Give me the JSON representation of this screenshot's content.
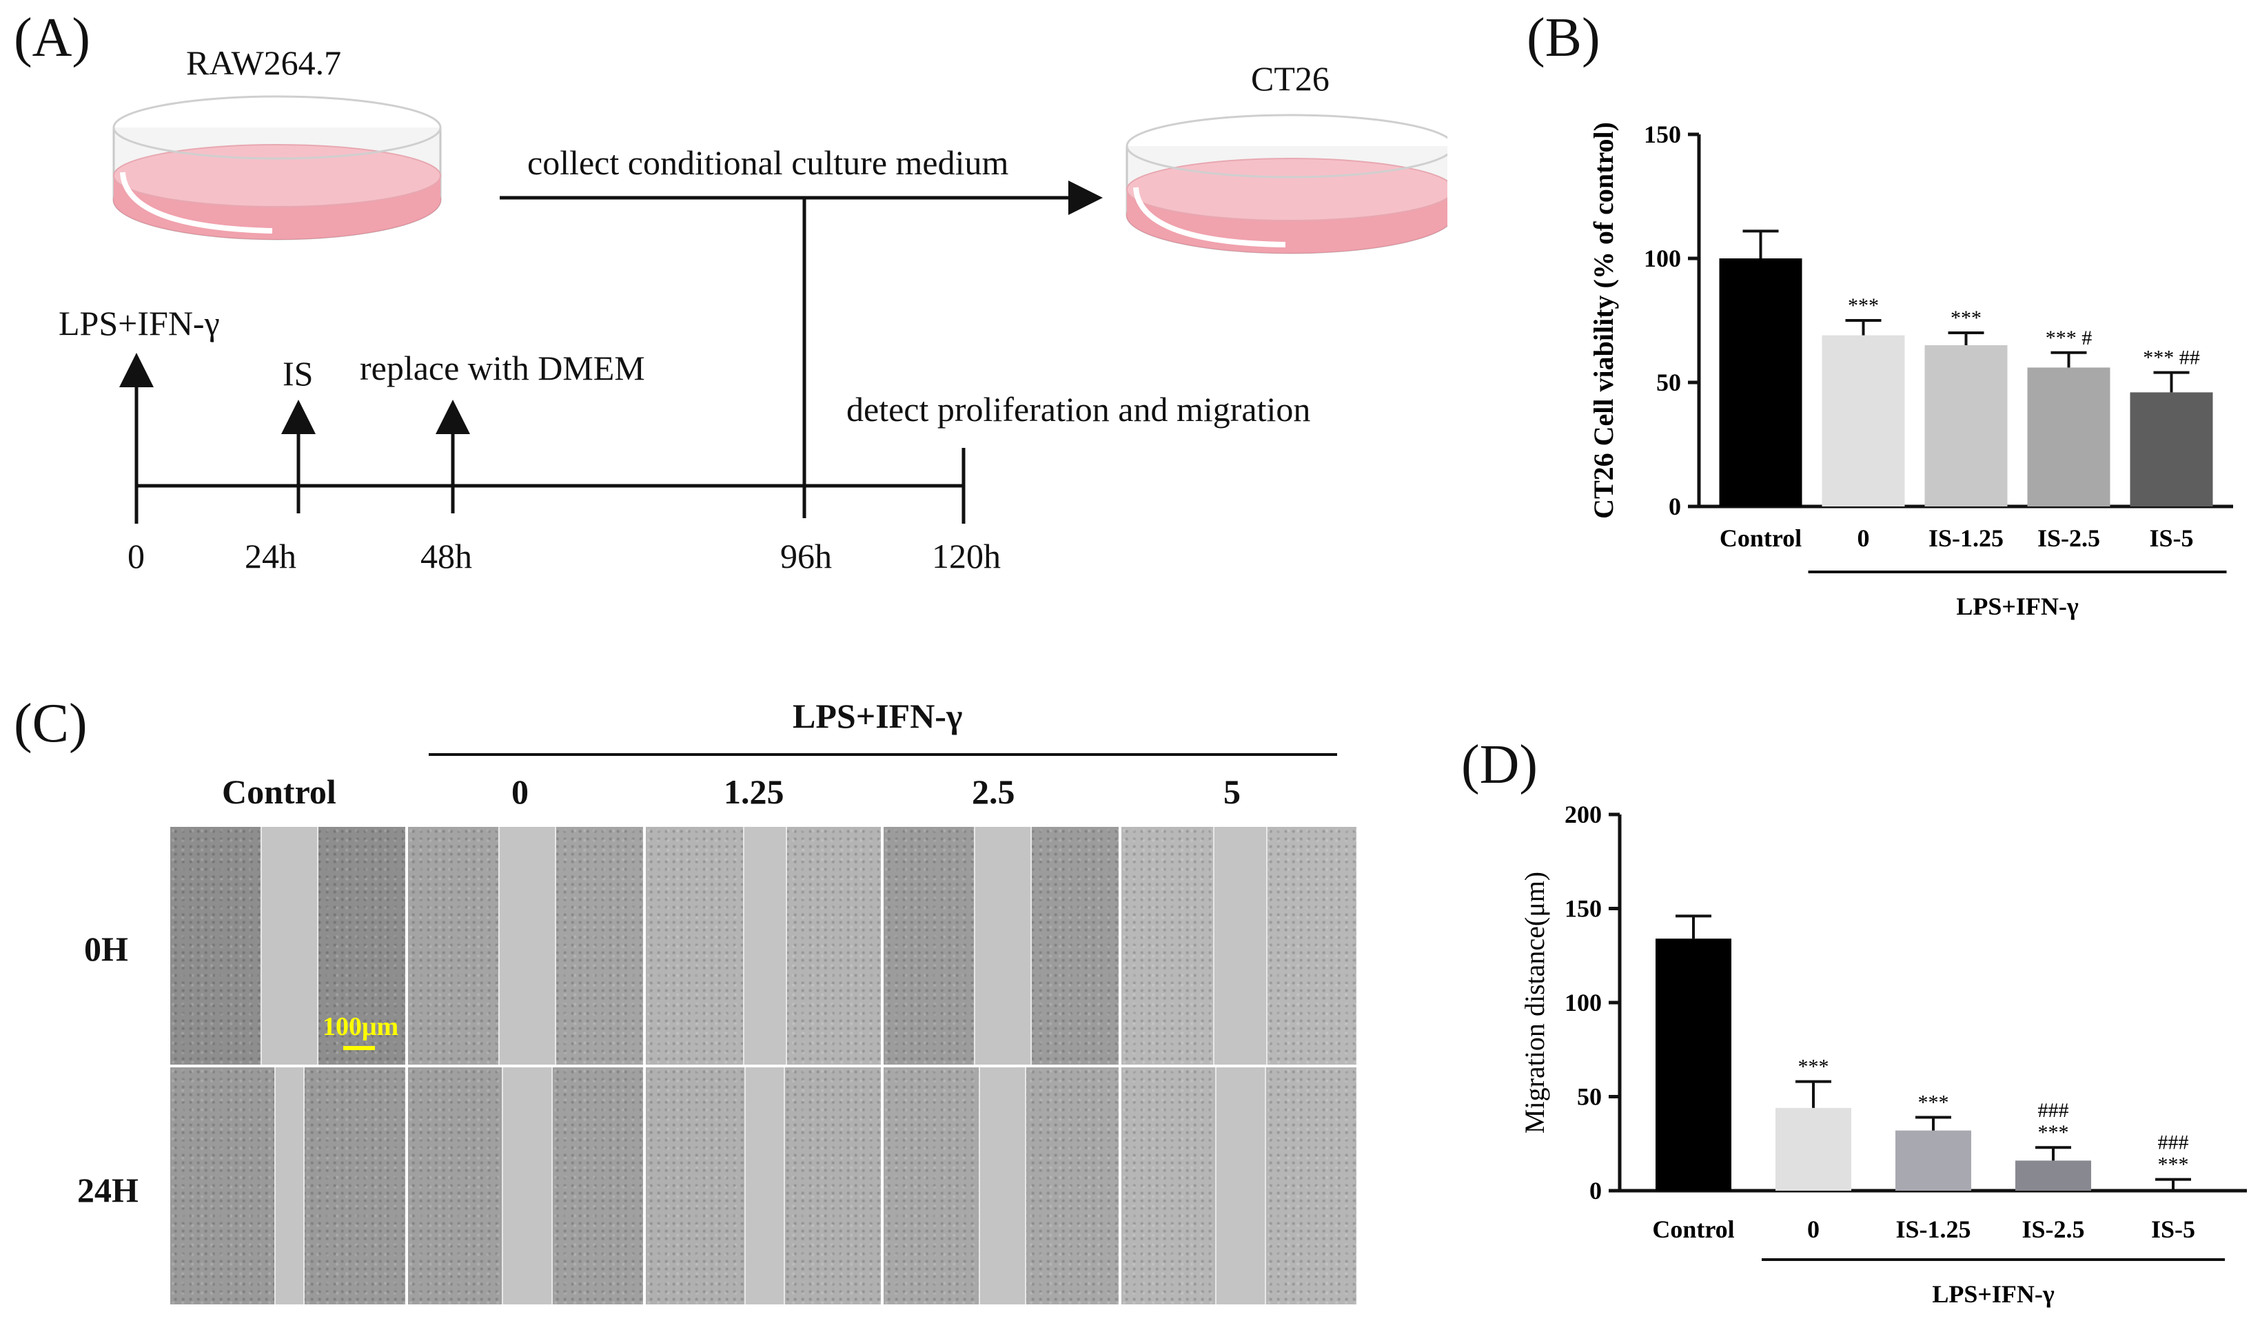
{
  "panels": {
    "a_label": "(A)",
    "b_label": "(B)",
    "c_label": "(C)",
    "d_label": "(D)"
  },
  "scheme": {
    "dish_left_label": "RAW264.7",
    "dish_right_label": "CT26",
    "arrow_label": "collect conditional culture medium",
    "events": {
      "lps": "LPS+IFN-γ",
      "is": "IS",
      "replace": "replace with DMEM",
      "detect": "detect proliferation and migration"
    },
    "times": [
      "0",
      "24h",
      "48h",
      "96h",
      "120h"
    ]
  },
  "micrograph": {
    "group_title": "LPS+IFN-γ",
    "columns": [
      "Control",
      "0",
      "1.25",
      "2.5",
      "5"
    ],
    "rows": [
      "0H",
      "24H"
    ],
    "scalebar": "100μm",
    "scalebar_color": "#ffff00"
  },
  "chart_data": [
    {
      "type": "bar",
      "ylabel": "CT26 Cell viability (% of control)",
      "categories": [
        "Control",
        "0",
        "IS-1.25",
        "IS-2.5",
        "IS-5"
      ],
      "values": [
        100,
        69,
        65,
        56,
        46
      ],
      "errors": [
        11,
        6,
        5,
        6,
        8
      ],
      "annotations": [
        "",
        "***",
        "***",
        "*** #",
        "*** ##"
      ],
      "bar_colors": [
        "#000000",
        "#e0e0e0",
        "#c8c8c8",
        "#a8a8a8",
        "#5e5e5e"
      ],
      "ylim": [
        0,
        150
      ],
      "yticks": [
        0,
        50,
        100,
        150
      ],
      "group_label": "LPS+IFN-γ"
    },
    {
      "type": "bar",
      "ylabel": "Migration distance(μm)",
      "categories": [
        "Control",
        "0",
        "IS-1.25",
        "IS-2.5",
        "IS-5"
      ],
      "values": [
        134,
        44,
        32,
        16,
        0
      ],
      "errors": [
        12,
        14,
        7,
        7,
        6
      ],
      "annotations": [
        "",
        "***",
        "***",
        "###\n***",
        "###\n***"
      ],
      "bar_colors": [
        "#000000",
        "#e0e0e0",
        "#a8a8b0",
        "#888890",
        "#666666"
      ],
      "ylim": [
        0,
        200
      ],
      "yticks": [
        0,
        50,
        100,
        150,
        200
      ],
      "group_label": "LPS+IFN-γ"
    }
  ]
}
